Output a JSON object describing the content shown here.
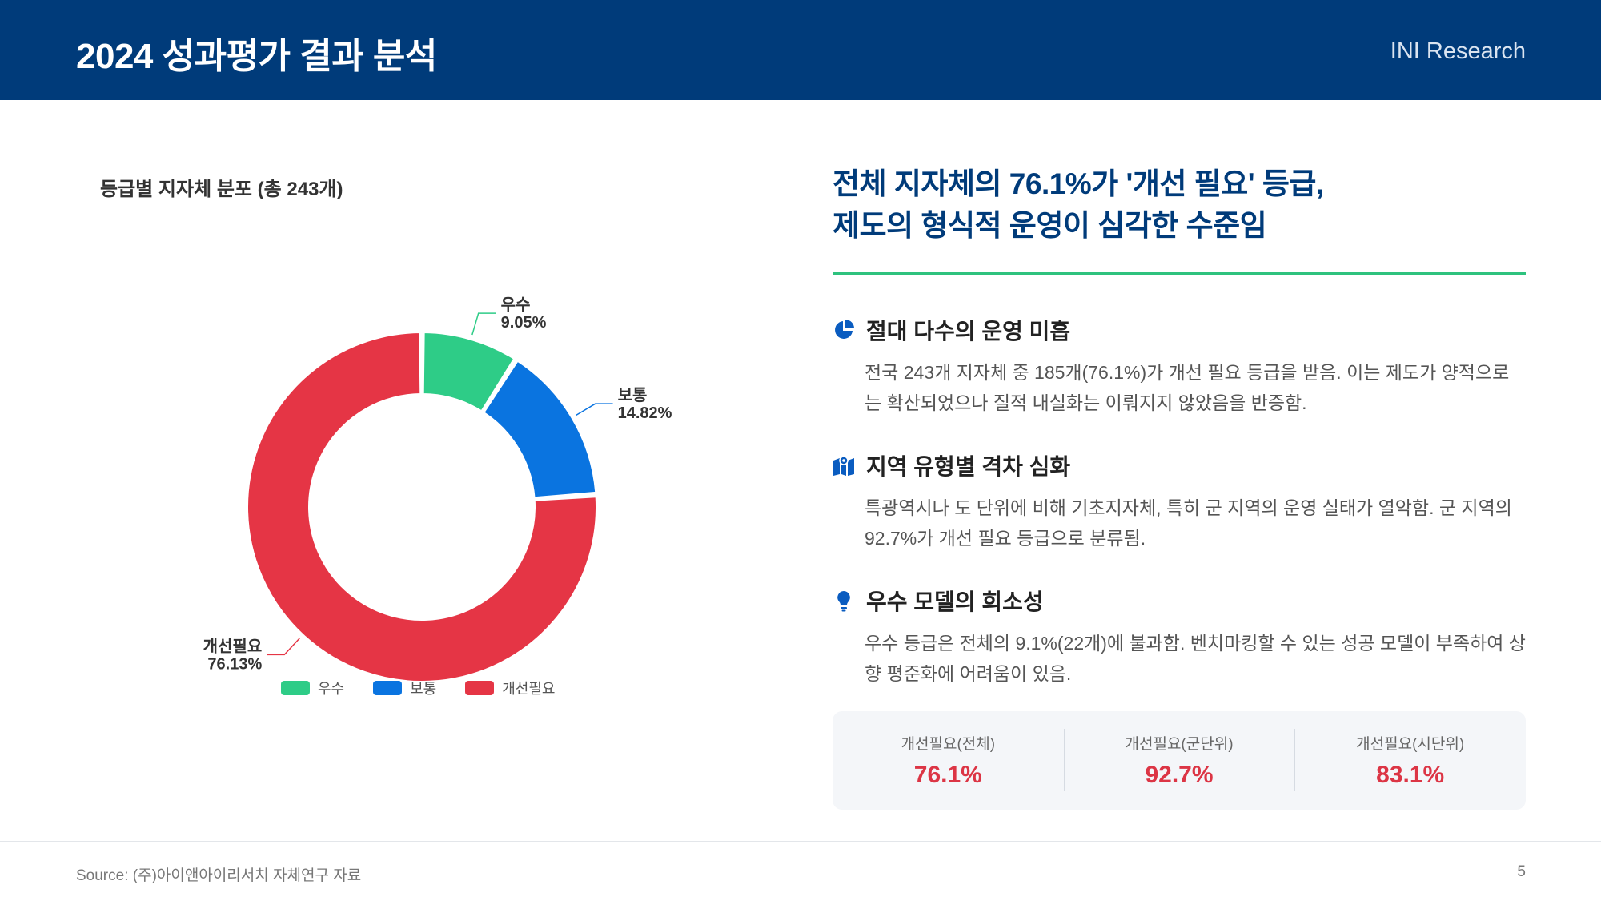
{
  "header": {
    "title": "2024 성과평가 결과 분석",
    "brand": "INI Research"
  },
  "chart_title": "등급별 지자체 분포 (총 243개)",
  "chart_data": {
    "type": "pie",
    "variant": "donut",
    "title": "등급별 지자체 분포 (총 243개)",
    "categories": [
      "우수",
      "보통",
      "개선필요"
    ],
    "values": [
      9.05,
      14.82,
      76.13
    ],
    "value_labels": [
      "9.05%",
      "14.82%",
      "76.13%"
    ],
    "colors": [
      "#2ecc87",
      "#0a74e0",
      "#e53545"
    ],
    "legend": "bottom"
  },
  "right": {
    "title_line1": "전체 지자체의 76.1%가 '개선 필요' 등급,",
    "title_line2": "제도의 형식적 운영이 심각한 수준임",
    "points": [
      {
        "icon": "pie-chart-icon",
        "title": "절대 다수의 운영 미흡",
        "body": "전국 243개 지자체 중 185개(76.1%)가 개선 필요 등급을 받음. 이는 제도가 양적으로는 확산되었으나 질적 내실화는 이뤄지지 않았음을 반증함."
      },
      {
        "icon": "map-icon",
        "title": "지역 유형별 격차 심화",
        "body": "특광역시나 도 단위에 비해 기초지자체, 특히 군 지역의 운영 실태가 열악함. 군 지역의 92.7%가 개선 필요 등급으로 분류됨."
      },
      {
        "icon": "lightbulb-icon",
        "title": "우수 모델의 희소성",
        "body": "우수 등급은 전체의 9.1%(22개)에 불과함. 벤치마킹할 수 있는 성공 모델이 부족하여 상향 평준화에 어려움이 있음."
      }
    ],
    "stats": [
      {
        "label": "개선필요(전체)",
        "value": "76.1%"
      },
      {
        "label": "개선필요(군단위)",
        "value": "92.7%"
      },
      {
        "label": "개선필요(시단위)",
        "value": "83.1%"
      }
    ]
  },
  "footer": {
    "source": "Source: (주)아이앤아이리서치 자체연구 자료",
    "page": "5"
  }
}
